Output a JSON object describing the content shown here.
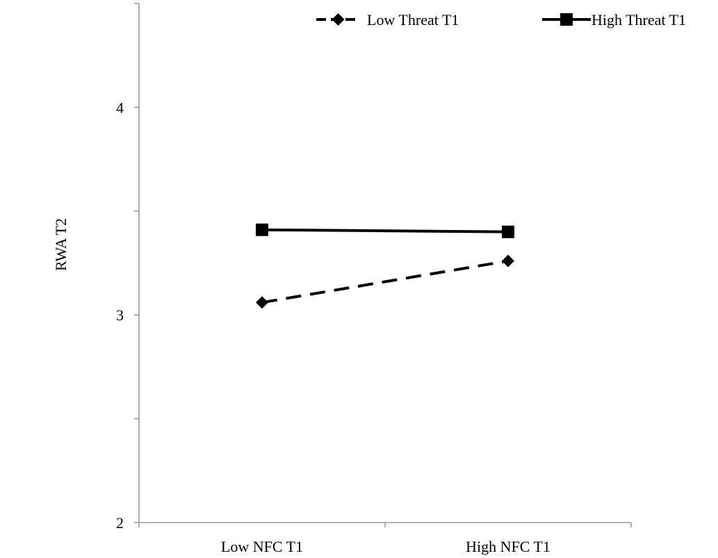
{
  "chart_data": {
    "type": "line",
    "categories": [
      "Low NFC T1",
      "High NFC T1"
    ],
    "series": [
      {
        "name": "Low Threat T1",
        "values": [
          3.06,
          3.26
        ],
        "line_style": "dashed",
        "marker": "diamond",
        "color": "#000000"
      },
      {
        "name": "High Threat T1",
        "values": [
          3.41,
          3.4
        ],
        "line_style": "solid",
        "marker": "square",
        "color": "#000000"
      }
    ],
    "title": "",
    "xlabel": "",
    "ylabel": "RWA T2",
    "ylim": [
      2,
      4.5
    ],
    "yticks": [
      2,
      2.5,
      3,
      3.5,
      4,
      4.5
    ],
    "ytick_labels": [
      "2",
      "",
      "3",
      "",
      "4",
      ""
    ],
    "grid": false,
    "legend_position": "top-right"
  }
}
